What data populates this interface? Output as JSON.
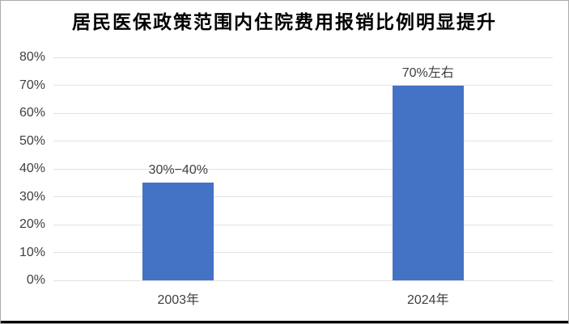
{
  "chart_data": {
    "type": "bar",
    "title": "居民医保政策范围内住院费用报销比例明显提升",
    "categories": [
      "2003年",
      "2024年"
    ],
    "values": [
      35,
      70
    ],
    "data_labels": [
      "30%−40%",
      "70%左右"
    ],
    "xlabel": "",
    "ylabel": "",
    "ylim": [
      0,
      80
    ],
    "ytick_step": 10,
    "ytick_labels": [
      "0%",
      "10%",
      "20%",
      "30%",
      "40%",
      "50%",
      "60%",
      "70%",
      "80%"
    ],
    "grid": true,
    "legend": false,
    "bar_color": "#4472C4",
    "gridline_color": "#E2E2E2",
    "title_color": "#000000",
    "axis_text_color": "#404040",
    "data_label_color": "#404040"
  }
}
